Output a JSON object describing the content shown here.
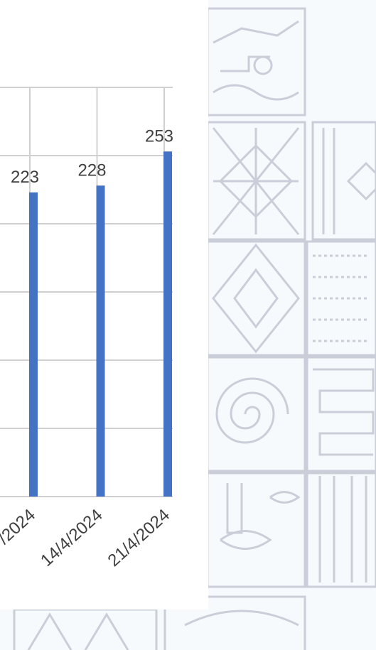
{
  "chart_data": {
    "type": "bar",
    "categories": [
      "/2024",
      "14/4/2024",
      "21/4/2024"
    ],
    "values": [
      223,
      228,
      253
    ],
    "color": "#4472c4",
    "ylim": [
      0,
      300
    ],
    "yticks": [
      0,
      50,
      100,
      150,
      200,
      250,
      300
    ],
    "grid": true
  }
}
